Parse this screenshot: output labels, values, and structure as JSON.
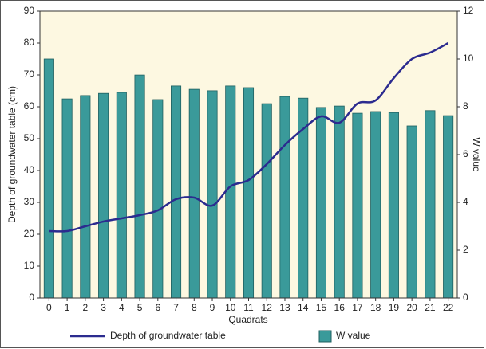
{
  "chart_data": {
    "type": "bar-line",
    "categories": [
      "0",
      "1",
      "2",
      "3",
      "4",
      "5",
      "6",
      "7",
      "8",
      "9",
      "10",
      "11",
      "12",
      "13",
      "14",
      "15",
      "16",
      "17",
      "18",
      "19",
      "20",
      "21",
      "22"
    ],
    "x_label": "Quadrats",
    "y_label": "Depth of groundwater table (cm)",
    "y2_label": "W value",
    "ylim": [
      0,
      90
    ],
    "yticks": [
      0,
      10,
      20,
      30,
      40,
      50,
      60,
      70,
      80,
      90
    ],
    "y2lim": [
      0,
      12
    ],
    "y2ticks": [
      0,
      2,
      4,
      6,
      8,
      10,
      12
    ],
    "background": "#fdf8e1",
    "series": [
      {
        "name": "Depth of groundwater table",
        "type": "line",
        "color": "#2b2b8f",
        "values": [
          21,
          21,
          22.5,
          24,
          25,
          26,
          27.5,
          31,
          31.5,
          29,
          35,
          37,
          42,
          48,
          53,
          57,
          55,
          61,
          62,
          69,
          75,
          77,
          80
        ]
      },
      {
        "name": "W value",
        "type": "bar",
        "axis": "y2",
        "color": "#3a9a9a",
        "values": [
          10.0,
          8.33,
          8.47,
          8.56,
          8.6,
          9.33,
          8.3,
          8.87,
          8.73,
          8.67,
          8.87,
          8.8,
          8.13,
          8.43,
          8.36,
          7.97,
          8.03,
          7.73,
          7.8,
          7.76,
          7.2,
          7.84,
          7.63
        ]
      }
    ]
  }
}
